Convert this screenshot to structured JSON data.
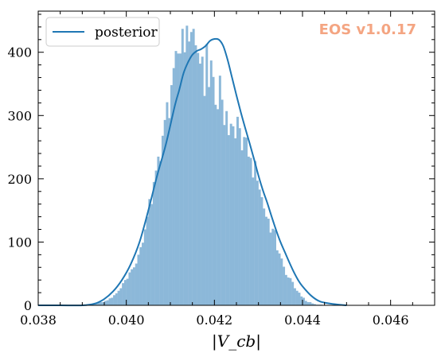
{
  "chart_data": {
    "type": "histogram",
    "xlabel": "|V_cb|",
    "xlim": [
      0.038,
      0.047
    ],
    "ylim": [
      0,
      465
    ],
    "xticks": [
      0.038,
      0.04,
      0.042,
      0.044,
      0.046
    ],
    "xtick_labels": [
      "0.038",
      "0.040",
      "0.042",
      "0.044",
      "0.046"
    ],
    "yticks": [
      0,
      100,
      200,
      300,
      400
    ],
    "ytick_labels": [
      "0",
      "100",
      "200",
      "300",
      "400"
    ],
    "bin_start": 0.0392,
    "bin_width": 5e-05,
    "bin_counts": [
      2,
      3,
      3,
      4,
      5,
      5,
      7,
      8,
      11,
      12,
      16,
      19,
      23,
      27,
      35,
      40,
      42,
      52,
      57,
      60,
      66,
      80,
      92,
      99,
      120,
      140,
      168,
      160,
      195,
      213,
      235,
      228,
      268,
      293,
      321,
      296,
      348,
      375,
      402,
      398,
      398,
      437,
      400,
      442,
      417,
      432,
      437,
      411,
      399,
      382,
      393,
      331,
      413,
      345,
      387,
      361,
      317,
      310,
      363,
      325,
      285,
      307,
      269,
      287,
      283,
      264,
      298,
      280,
      245,
      266,
      265,
      235,
      233,
      202,
      228,
      197,
      183,
      171,
      153,
      140,
      137,
      115,
      121,
      119,
      87,
      82,
      74,
      61,
      48,
      44,
      43,
      37,
      27,
      23,
      20,
      14,
      12,
      7,
      5,
      5,
      3,
      2,
      1,
      1,
      1
    ],
    "series": [
      {
        "name": "posterior",
        "x": [
          0.038,
          0.0385,
          0.039,
          0.0393,
          0.0395,
          0.0397,
          0.0399,
          0.0401,
          0.0403,
          0.0405,
          0.0407,
          0.0409,
          0.0411,
          0.0412,
          0.0413,
          0.0414,
          0.0415,
          0.0416,
          0.0417,
          0.0418,
          0.0419,
          0.042,
          0.0421,
          0.0422,
          0.0423,
          0.0424,
          0.0425,
          0.0426,
          0.0427,
          0.0428,
          0.0429,
          0.043,
          0.0431,
          0.0432,
          0.0433,
          0.0434,
          0.0435,
          0.0436,
          0.0437,
          0.0438,
          0.0439,
          0.044,
          0.0442,
          0.0444,
          0.0447,
          0.045
        ],
        "values": [
          0,
          0,
          0,
          3,
          10,
          22,
          40,
          65,
          100,
          150,
          205,
          255,
          315,
          340,
          367,
          384,
          396,
          402,
          405,
          410,
          418,
          421,
          420,
          410,
          388,
          360,
          332,
          305,
          280,
          256,
          231,
          205,
          182,
          162,
          140,
          119,
          100,
          84,
          68,
          53,
          40,
          30,
          15,
          6,
          2,
          0
        ]
      }
    ],
    "colors": {
      "bars": "#8cb8d9",
      "line": "#1f77b4",
      "watermark": "#f4a582"
    }
  },
  "legend": {
    "entries": [
      "posterior"
    ]
  },
  "watermark": {
    "text": "EOS v1.0.17"
  }
}
